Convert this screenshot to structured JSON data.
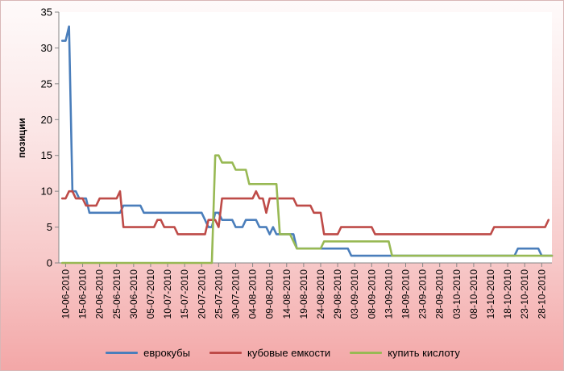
{
  "chart_data": {
    "type": "line",
    "title": "",
    "xlabel": "",
    "ylabel": "позиции",
    "xlim": [
      "2010-06-08",
      "2010-10-31"
    ],
    "ylim": [
      0,
      35
    ],
    "y_ticks": [
      0,
      5,
      10,
      15,
      20,
      25,
      30,
      35
    ],
    "x_tick_labels": [
      "10-06-2010",
      "15-06-2010",
      "20-06-2010",
      "25-06-2010",
      "30-06-2010",
      "05-07-2010",
      "10-07-2010",
      "15-07-2010",
      "20-07-2010",
      "25-07-2010",
      "30-07-2010",
      "04-08-2010",
      "09-08-2010",
      "14-08-2010",
      "19-08-2010",
      "24-08-2010",
      "29-08-2010",
      "03-09-2010",
      "08-09-2010",
      "13-09-2010",
      "18-09-2010",
      "23-09-2010",
      "28-09-2010",
      "03-10-2010",
      "08-10-2010",
      "13-10-2010",
      "18-10-2010",
      "23-10-2010",
      "28-10-2010"
    ],
    "grid": false,
    "legend": "bottom",
    "series": [
      {
        "name": "еврокубы",
        "color": "#4a7ebb",
        "x": [
          "2010-06-09",
          "2010-06-10",
          "2010-06-11",
          "2010-06-12",
          "2010-06-13",
          "2010-06-14",
          "2010-06-16",
          "2010-06-17",
          "2010-06-26",
          "2010-06-27",
          "2010-07-02",
          "2010-07-03",
          "2010-07-20",
          "2010-07-21",
          "2010-07-22",
          "2010-07-23",
          "2010-07-24",
          "2010-07-25",
          "2010-07-26",
          "2010-07-29",
          "2010-07-30",
          "2010-08-01",
          "2010-08-02",
          "2010-08-05",
          "2010-08-06",
          "2010-08-08",
          "2010-08-09",
          "2010-08-10",
          "2010-08-11",
          "2010-08-16",
          "2010-08-17",
          "2010-09-01",
          "2010-09-02",
          "2010-10-20",
          "2010-10-21",
          "2010-10-27",
          "2010-10-28",
          "2010-10-31"
        ],
        "y": [
          31,
          31,
          33,
          10,
          10,
          9,
          9,
          7,
          7,
          8,
          8,
          7,
          7,
          6,
          5,
          5,
          7,
          7,
          6,
          6,
          5,
          5,
          6,
          6,
          5,
          5,
          4,
          5,
          4,
          4,
          2,
          2,
          1,
          1,
          2,
          2,
          1,
          1
        ]
      },
      {
        "name": "кубовые емкости",
        "color": "#be4b48",
        "x": [
          "2010-06-09",
          "2010-06-10",
          "2010-06-11",
          "2010-06-12",
          "2010-06-13",
          "2010-06-15",
          "2010-06-16",
          "2010-06-19",
          "2010-06-20",
          "2010-06-25",
          "2010-06-26",
          "2010-06-27",
          "2010-07-06",
          "2010-07-07",
          "2010-07-08",
          "2010-07-09",
          "2010-07-12",
          "2010-07-13",
          "2010-07-21",
          "2010-07-22",
          "2010-07-24",
          "2010-07-25",
          "2010-07-26",
          "2010-08-04",
          "2010-08-05",
          "2010-08-06",
          "2010-08-07",
          "2010-08-08",
          "2010-08-09",
          "2010-08-16",
          "2010-08-17",
          "2010-08-21",
          "2010-08-22",
          "2010-08-24",
          "2010-08-25",
          "2010-08-29",
          "2010-08-30",
          "2010-09-08",
          "2010-09-09",
          "2010-10-13",
          "2010-10-14",
          "2010-10-29",
          "2010-10-30"
        ],
        "y": [
          9,
          9,
          10,
          10,
          9,
          9,
          8,
          8,
          9,
          9,
          10,
          5,
          5,
          6,
          6,
          5,
          5,
          4,
          4,
          6,
          6,
          5,
          9,
          9,
          10,
          9,
          9,
          7,
          9,
          9,
          8,
          8,
          7,
          7,
          4,
          4,
          5,
          5,
          4,
          4,
          5,
          5,
          6
        ]
      },
      {
        "name": "купить кислоту",
        "color": "#98b954",
        "x": [
          "2010-06-09",
          "2010-07-23",
          "2010-07-24",
          "2010-07-25",
          "2010-07-26",
          "2010-07-29",
          "2010-07-30",
          "2010-08-02",
          "2010-08-03",
          "2010-08-11",
          "2010-08-12",
          "2010-08-15",
          "2010-08-17",
          "2010-08-24",
          "2010-08-25",
          "2010-09-13",
          "2010-09-14",
          "2010-10-31"
        ],
        "y": [
          0,
          0,
          15,
          15,
          14,
          14,
          13,
          13,
          11,
          11,
          4,
          4,
          2,
          2,
          3,
          3,
          1,
          1
        ]
      }
    ]
  }
}
